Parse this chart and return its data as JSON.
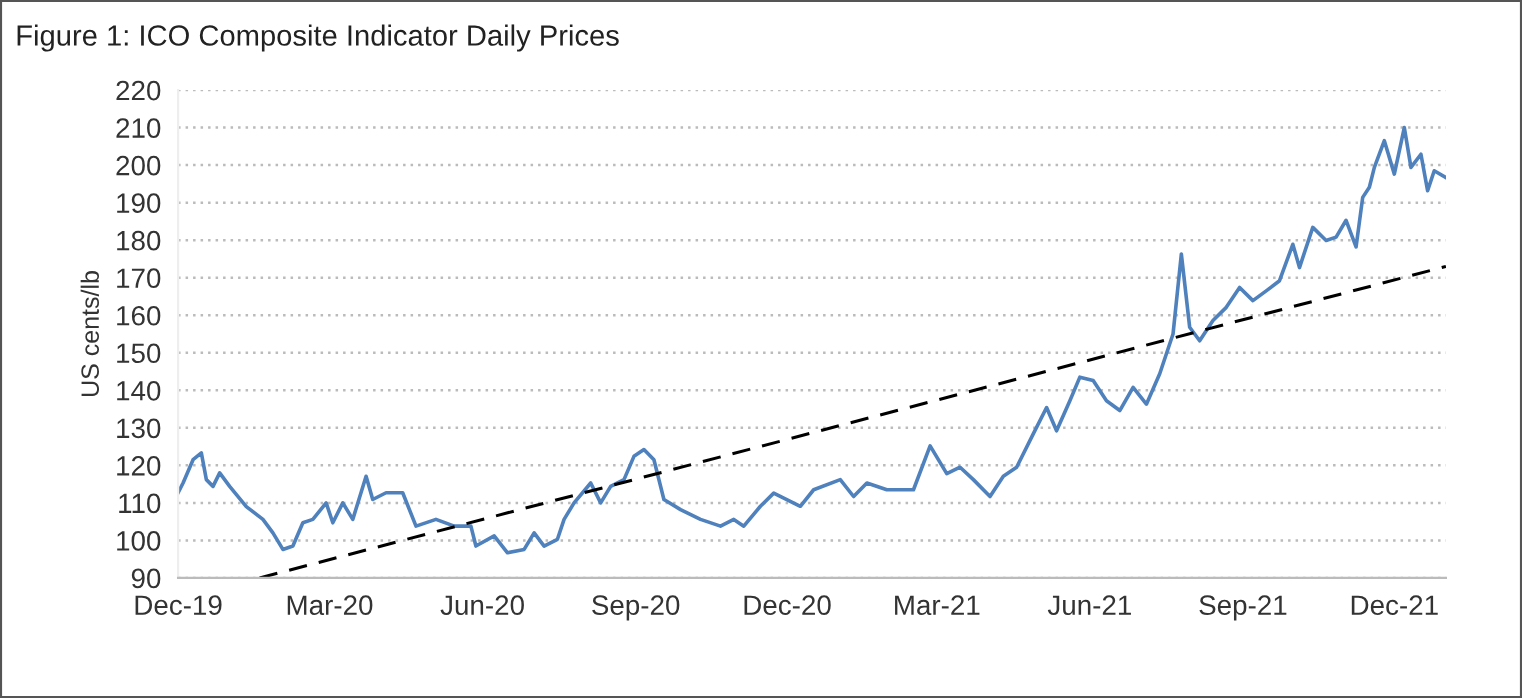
{
  "chart_data": {
    "type": "line",
    "title": "Figure 1: ICO Composite Indicator Daily Prices",
    "ylabel": "US cents/lb",
    "ylim": [
      90,
      220
    ],
    "yticks": [
      90,
      100,
      110,
      120,
      130,
      140,
      150,
      160,
      170,
      180,
      190,
      200,
      210,
      220
    ],
    "xlim": [
      "2019-12-01",
      "2022-01-01"
    ],
    "xticks": [
      {
        "value": "2019-12-01",
        "label": "Dec-19"
      },
      {
        "value": "2020-03-01",
        "label": "Mar-20"
      },
      {
        "value": "2020-06-01",
        "label": "Jun-20"
      },
      {
        "value": "2020-09-01",
        "label": "Sep-20"
      },
      {
        "value": "2020-12-01",
        "label": "Dec-20"
      },
      {
        "value": "2021-03-01",
        "label": "Mar-21"
      },
      {
        "value": "2021-06-01",
        "label": "Jun-21"
      },
      {
        "value": "2021-09-01",
        "label": "Sep-21"
      },
      {
        "value": "2021-12-01",
        "label": "Dec-21"
      }
    ],
    "grid": "y",
    "legend": false,
    "marker": "none",
    "series": [
      {
        "color": "#4f81bd",
        "line_style": "solid",
        "x": [
          "2019-12-01",
          "2019-12-04",
          "2019-12-10",
          "2019-12-15",
          "2019-12-18",
          "2019-12-22",
          "2019-12-26",
          "2020-01-01",
          "2020-01-11",
          "2020-01-21",
          "2020-01-27",
          "2020-02-02",
          "2020-02-08",
          "2020-02-14",
          "2020-02-20",
          "2020-02-28",
          "2020-03-03",
          "2020-03-09",
          "2020-03-15",
          "2020-03-23",
          "2020-03-27",
          "2020-04-04",
          "2020-04-14",
          "2020-04-22",
          "2020-05-04",
          "2020-05-15",
          "2020-05-25",
          "2020-05-28",
          "2020-06-08",
          "2020-06-16",
          "2020-06-26",
          "2020-07-02",
          "2020-07-08",
          "2020-07-16",
          "2020-07-20",
          "2020-07-26",
          "2020-08-05",
          "2020-08-11",
          "2020-08-17",
          "2020-08-25",
          "2020-08-31",
          "2020-09-06",
          "2020-09-12",
          "2020-09-18",
          "2020-09-28",
          "2020-10-10",
          "2020-10-22",
          "2020-10-30",
          "2020-11-05",
          "2020-11-15",
          "2020-11-23",
          "2020-12-09",
          "2020-12-17",
          "2021-01-02",
          "2021-01-10",
          "2021-01-18",
          "2021-01-30",
          "2021-02-15",
          "2021-02-25",
          "2021-03-07",
          "2021-03-15",
          "2021-03-23",
          "2021-04-02",
          "2021-04-10",
          "2021-04-18",
          "2021-04-28",
          "2021-05-06",
          "2021-05-12",
          "2021-05-20",
          "2021-05-26",
          "2021-06-03",
          "2021-06-11",
          "2021-06-19",
          "2021-06-27",
          "2021-07-05",
          "2021-07-13",
          "2021-07-21",
          "2021-07-26",
          "2021-07-31",
          "2021-08-06",
          "2021-08-14",
          "2021-08-22",
          "2021-08-30",
          "2021-09-07",
          "2021-09-15",
          "2021-09-23",
          "2021-10-01",
          "2021-10-05",
          "2021-10-13",
          "2021-10-21",
          "2021-10-27",
          "2021-11-02",
          "2021-11-08",
          "2021-11-12",
          "2021-11-16",
          "2021-11-19",
          "2021-11-25",
          "2021-12-01",
          "2021-12-07",
          "2021-12-11",
          "2021-12-17",
          "2021-12-21",
          "2021-12-25",
          "2022-01-01"
        ],
        "values": [
          112.7,
          115.3,
          121.5,
          123.3,
          116.2,
          114.4,
          118,
          114.4,
          109,
          105.6,
          102,
          97.6,
          98.5,
          104.7,
          105.6,
          110,
          104.7,
          110,
          105.6,
          117.1,
          110.9,
          112.7,
          112.7,
          103.8,
          105.6,
          103.8,
          103.8,
          98.5,
          101.2,
          96.7,
          97.6,
          102,
          98.5,
          100.3,
          105.6,
          110,
          115.3,
          110,
          114.4,
          116.2,
          122.4,
          124.2,
          121.5,
          110.9,
          108.2,
          105.6,
          103.8,
          105.6,
          103.8,
          109.1,
          112.6,
          109.1,
          113.5,
          116.2,
          111.7,
          115.3,
          113.5,
          113.5,
          125.2,
          117.8,
          119.5,
          116.2,
          111.7,
          117.1,
          119.5,
          128.4,
          135.4,
          129.2,
          137.2,
          143.5,
          142.6,
          137.2,
          134.6,
          140.8,
          136.3,
          144.4,
          155,
          176.3,
          156.8,
          153.2,
          158.6,
          162.1,
          167.4,
          163.9,
          166.5,
          169.2,
          178.9,
          172.7,
          183.4,
          179.9,
          180.8,
          185.3,
          178.2,
          191.4,
          194.1,
          199.4,
          206.5,
          197.6,
          210,
          199.4,
          202.9,
          193.2,
          198.5,
          196.7
        ]
      },
      {
        "color": "#000000",
        "line_style": "dashed",
        "x": [
          "2020-01-19",
          "2022-01-01"
        ],
        "values": [
          90,
          173
        ]
      }
    ]
  }
}
